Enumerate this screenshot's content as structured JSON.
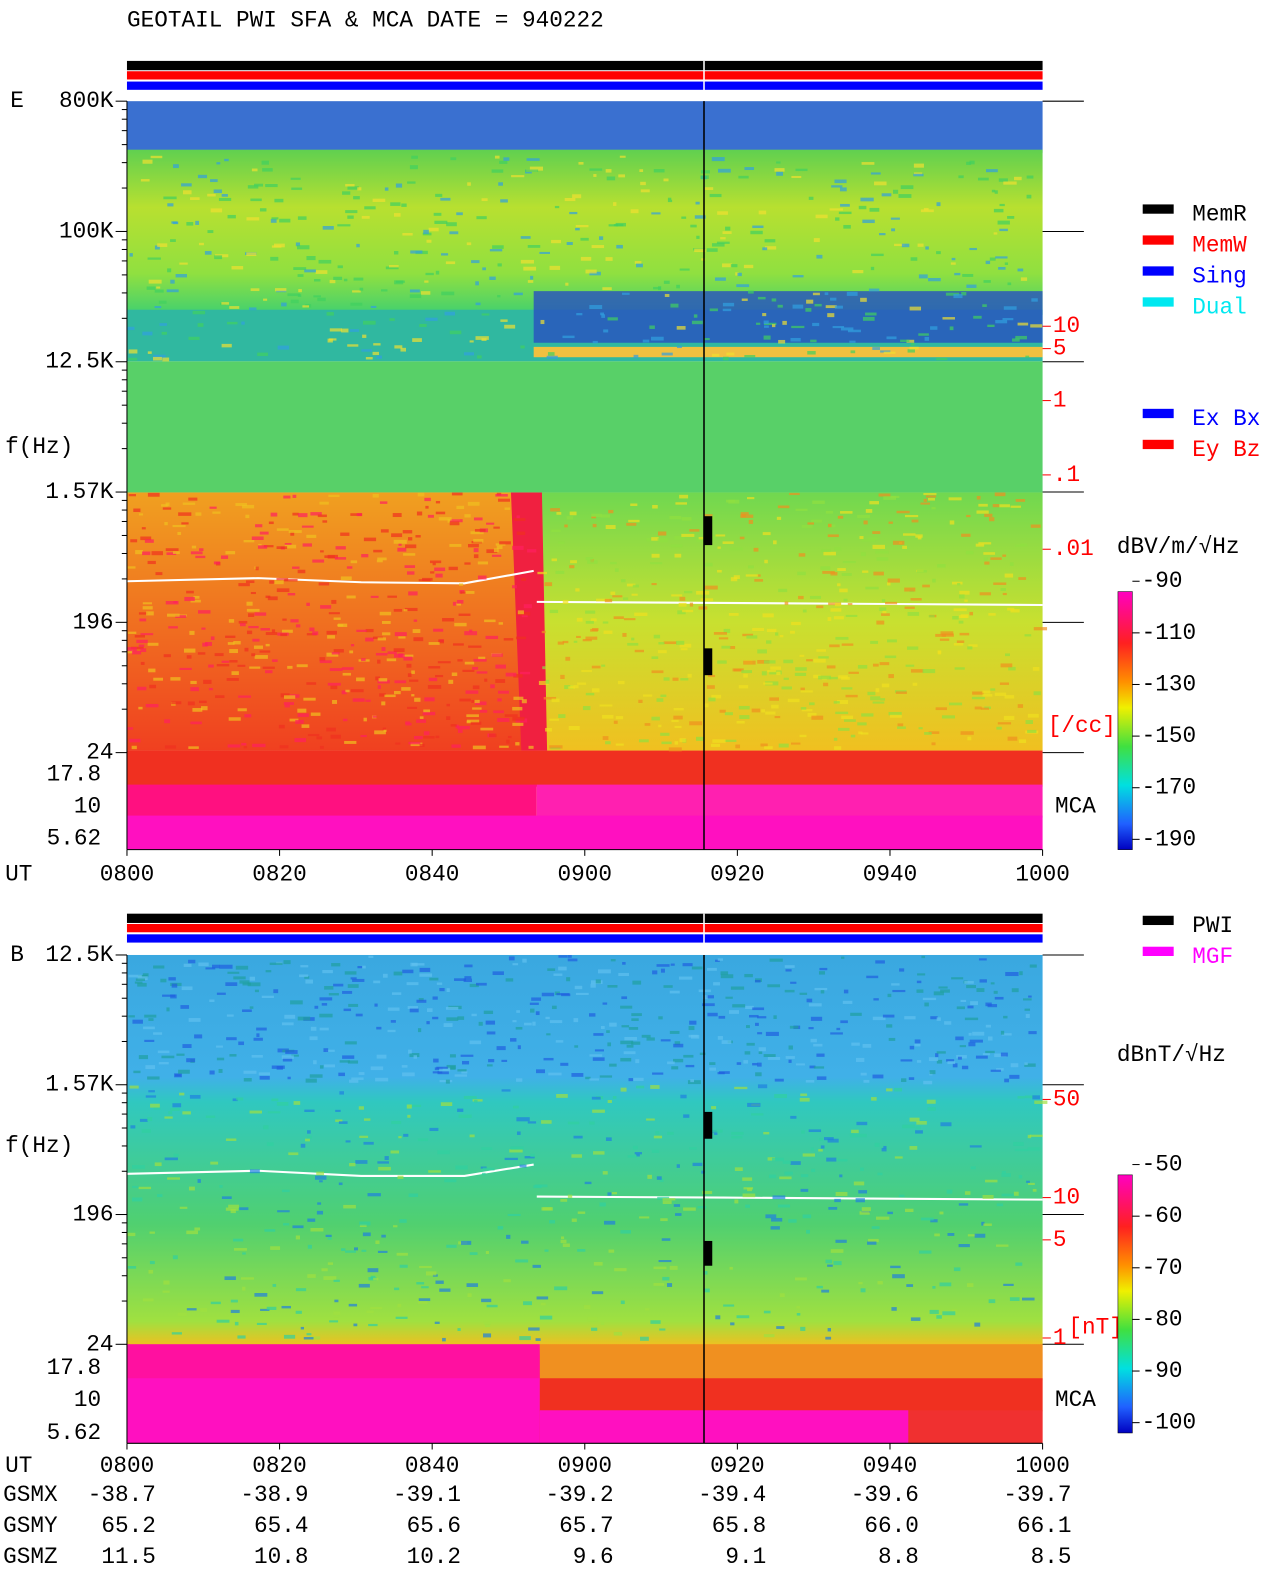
{
  "title": "GEOTAIL  PWI SFA & MCA   DATE = 940222",
  "panels": [
    {
      "label": "E",
      "axis_label": "f(Hz)",
      "freq_ticks": [
        "800K",
        "100K",
        "12.5K",
        "1.57K",
        "196",
        "24"
      ],
      "mca_ticks": [
        "17.8",
        "10",
        "5.62"
      ],
      "mca_label": "MCA",
      "ut_label": "UT",
      "ut_ticks": [
        "0800",
        "0820",
        "0840",
        "0900",
        "0920",
        "0940",
        "1000"
      ],
      "density_ticks": [
        10,
        5,
        1,
        {
          "value": 0.1,
          "label": ".1"
        },
        {
          "value": 0.01,
          "label": ".01"
        }
      ],
      "density_unit": "[/cc]",
      "colorbar": {
        "unit": "dBV/m/√Hz",
        "ticks": [
          -90,
          -110,
          -130,
          -150,
          -170,
          -190
        ]
      },
      "legends": [
        [
          {
            "name": "MemR",
            "color": "#000000"
          },
          {
            "name": "MemW",
            "color": "#ff0000"
          },
          {
            "name": "Sing",
            "color": "#0000ff"
          },
          {
            "name": "Dual",
            "color": "#00e8f0"
          }
        ],
        [
          {
            "name": "Ex Bx",
            "color": "#0000ff"
          },
          {
            "name": "Ey Bz",
            "color": "#ff0000"
          }
        ]
      ]
    },
    {
      "label": "B",
      "axis_label": "f(Hz)",
      "freq_ticks": [
        "12.5K",
        "1.57K",
        "196",
        "24"
      ],
      "mca_ticks": [
        "17.8",
        "10",
        "5.62"
      ],
      "mca_label": "MCA",
      "ut_label": "UT",
      "ut_ticks": [
        "0800",
        "0820",
        "0840",
        "0900",
        "0920",
        "0940",
        "1000"
      ],
      "density_ticks": [
        50,
        10,
        5,
        1
      ],
      "density_unit": "[nT]",
      "colorbar": {
        "unit": "dBnT/√Hz",
        "ticks": [
          -50,
          -60,
          -70,
          -80,
          -90,
          -100
        ]
      },
      "legends": [
        [
          {
            "name": "PWI",
            "color": "#000000"
          },
          {
            "name": "MGF",
            "color": "#ff00ff"
          }
        ]
      ]
    }
  ],
  "orbit": [
    {
      "name": "GSMX",
      "values": [
        "-38.7",
        "-38.9",
        "-39.1",
        "-39.2",
        "-39.4",
        "-39.6",
        "-39.7"
      ]
    },
    {
      "name": "GSMY",
      "values": [
        "65.2",
        "65.4",
        "65.6",
        "65.7",
        "65.8",
        "66.0",
        "66.1"
      ]
    },
    {
      "name": "GSMZ",
      "values": [
        "11.5",
        "10.8",
        "10.2",
        "9.6",
        "9.1",
        "8.8",
        "8.5"
      ]
    }
  ]
}
